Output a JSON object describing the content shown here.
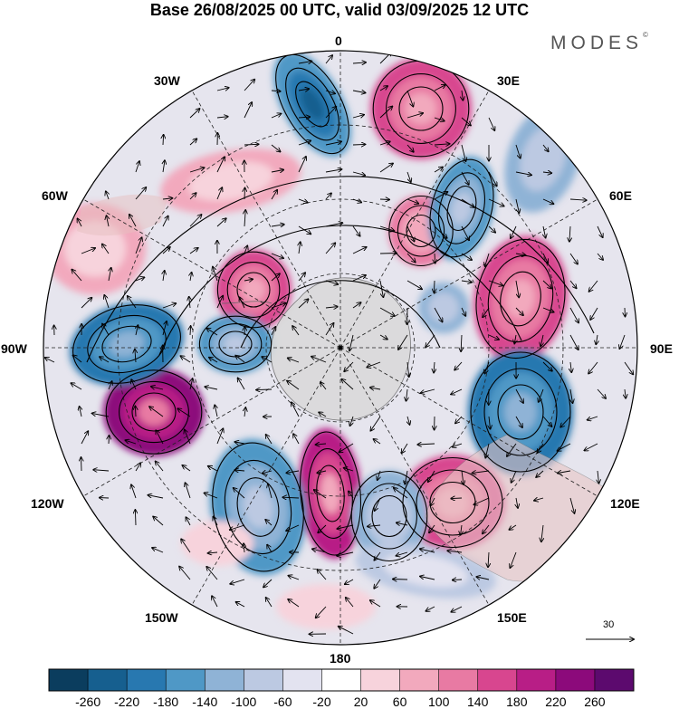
{
  "header": {
    "title": "Base 26/08/2025 00 UTC, valid 03/09/2025 12 UTC",
    "brand": "MODES",
    "brand_mark": "©"
  },
  "map": {
    "projection": "south-polar-stereographic",
    "longitude_labels": {
      "top": "0",
      "top_right": "30E",
      "right_upper": "60E",
      "right": "90E",
      "right_lower": "120E",
      "bottom_right": "150E",
      "bottom": "180",
      "bottom_left": "150W",
      "left_lower": "120W",
      "left": "90W",
      "left_upper": "60W",
      "top_left": "30W"
    },
    "vector_reference": {
      "value": "30"
    }
  },
  "colorbar": {
    "colors": [
      "#0b3d5e",
      "#165f8f",
      "#2878b0",
      "#4f98c6",
      "#8fb3d6",
      "#bcc9e2",
      "#e3e3f0",
      "#ffffff",
      "#f7d3dc",
      "#f2a9bd",
      "#e87aa3",
      "#d8468f",
      "#b81e86",
      "#8c0a7b",
      "#5c0a6e"
    ],
    "ticks": [
      "-260",
      "-220",
      "-180",
      "-140",
      "-100",
      "-60",
      "-20",
      "20",
      "60",
      "100",
      "140",
      "180",
      "220",
      "260"
    ]
  }
}
